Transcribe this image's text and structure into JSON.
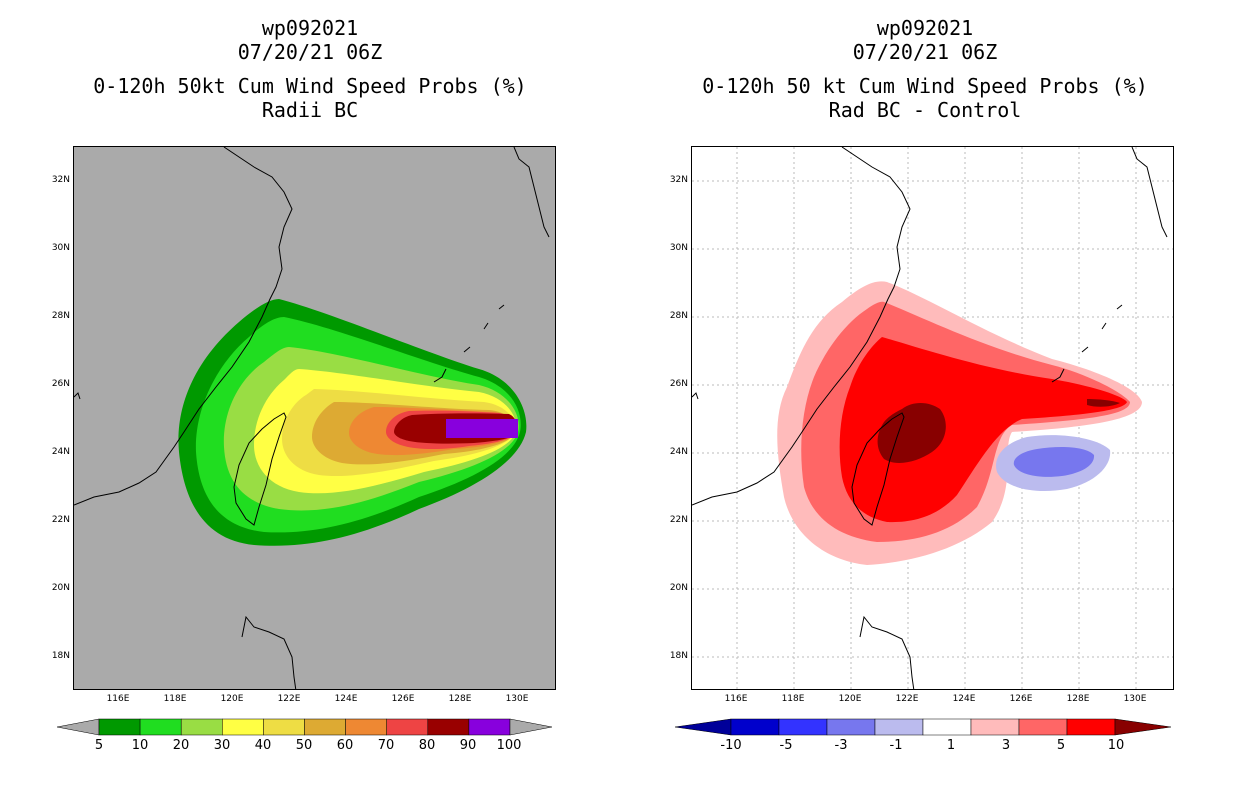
{
  "left": {
    "title_lines": [
      "wp092021",
      "07/20/21 06Z",
      "0-120h 50kt Cum Wind Speed Probs (%)",
      "Radii BC"
    ],
    "colorbar": {
      "labels": [
        "5",
        "10",
        "20",
        "30",
        "40",
        "50",
        "60",
        "70",
        "80",
        "90",
        "100"
      ],
      "colors": [
        "#009900",
        "#20dd20",
        "#99dd44",
        "#ffff44",
        "#eedd44",
        "#ddaa33",
        "#ee8833",
        "#ee4444",
        "#990000",
        "#8800dd"
      ],
      "end_color": "#aaaaaa"
    },
    "background_color": "#aaaaaa"
  },
  "right": {
    "title_lines": [
      "wp092021",
      "07/20/21 06Z",
      "0-120h 50 kt Cum Wind Speed Probs (%)",
      "Rad BC - Control"
    ],
    "colorbar": {
      "labels": [
        "-10",
        "-5",
        "-3",
        "-1",
        "1",
        "3",
        "5",
        "10"
      ],
      "colors": [
        "#0000cc",
        "#3333ff",
        "#7777ee",
        "#bbbbee",
        "#ffffff",
        "#ffbbbb",
        "#ff6666",
        "#ff0000"
      ],
      "low_end_color": "#000099",
      "high_end_color": "#880000"
    },
    "background_color": "#ffffff"
  },
  "axes": {
    "lat_labels": [
      "32N",
      "30N",
      "28N",
      "26N",
      "24N",
      "22N",
      "20N",
      "18N"
    ],
    "lon_labels": [
      "116E",
      "118E",
      "120E",
      "122E",
      "124E",
      "126E",
      "128E",
      "130E"
    ],
    "lat_range": [
      17,
      33
    ],
    "lon_range": [
      114.5,
      131.5
    ]
  },
  "gridlines_right": true
}
